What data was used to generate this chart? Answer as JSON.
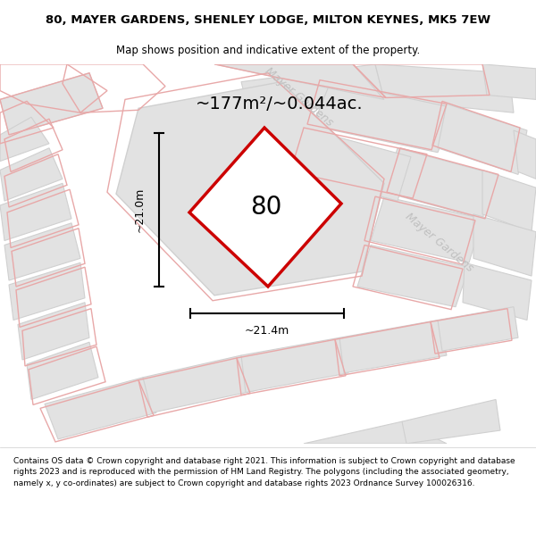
{
  "title": "80, MAYER GARDENS, SHENLEY LODGE, MILTON KEYNES, MK5 7EW",
  "subtitle": "Map shows position and indicative extent of the property.",
  "area_text": "~177m²/~0.044ac.",
  "label_number": "80",
  "dim_vertical": "~21.0m",
  "dim_horizontal": "~21.4m",
  "footer": "Contains OS data © Crown copyright and database right 2021. This information is subject to Crown copyright and database rights 2023 and is reproduced with the permission of HM Land Registry. The polygons (including the associated geometry, namely x, y co-ordinates) are subject to Crown copyright and database rights 2023 Ordnance Survey 100026316.",
  "bg_color": "#f2f2f2",
  "block_color": "#e2e2e2",
  "block_edge_color": "#d0d0d0",
  "pink_color": "#e8a8a8",
  "road_label_color": "#c0c0c0",
  "highlight_color": "#cc0000",
  "white": "#ffffff",
  "title_fontsize": 9.5,
  "subtitle_fontsize": 8.5,
  "footer_fontsize": 6.5,
  "map_label_fontsize": 9,
  "area_fontsize": 14,
  "number_fontsize": 20,
  "dim_fontsize": 9
}
